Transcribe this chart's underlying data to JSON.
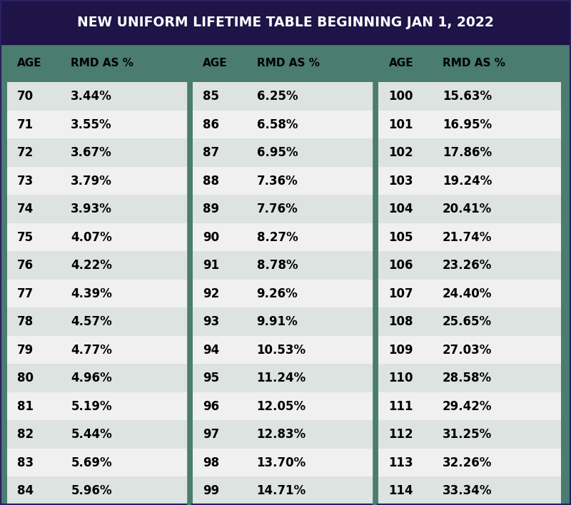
{
  "title": "NEW UNIFORM LIFETIME TABLE BEGINNING JAN 1, 2022",
  "title_bg": "#1e1447",
  "title_color": "#ffffff",
  "table_bg": "#4a7c6f",
  "row_even_bg": "#dde3e0",
  "row_odd_bg": "#f0f0f0",
  "header_color": "#000000",
  "col1_ages": [
    70,
    71,
    72,
    73,
    74,
    75,
    76,
    77,
    78,
    79,
    80,
    81,
    82,
    83,
    84
  ],
  "col1_pcts": [
    "3.44%",
    "3.55%",
    "3.67%",
    "3.79%",
    "3.93%",
    "4.07%",
    "4.22%",
    "4.39%",
    "4.57%",
    "4.77%",
    "4.96%",
    "5.19%",
    "5.44%",
    "5.69%",
    "5.96%"
  ],
  "col2_ages": [
    85,
    86,
    87,
    88,
    89,
    90,
    91,
    92,
    93,
    94,
    95,
    96,
    97,
    98,
    99
  ],
  "col2_pcts": [
    "6.25%",
    "6.58%",
    "6.95%",
    "7.36%",
    "7.76%",
    "8.27%",
    "8.78%",
    "9.26%",
    "9.91%",
    "10.53%",
    "11.24%",
    "12.05%",
    "12.83%",
    "13.70%",
    "14.71%"
  ],
  "col3_ages": [
    100,
    101,
    102,
    103,
    104,
    105,
    106,
    107,
    108,
    109,
    110,
    111,
    112,
    113,
    114
  ],
  "col3_pcts": [
    "15.63%",
    "16.95%",
    "17.86%",
    "19.24%",
    "20.41%",
    "21.74%",
    "23.26%",
    "24.40%",
    "25.65%",
    "27.03%",
    "28.58%",
    "29.42%",
    "31.25%",
    "32.26%",
    "33.34%"
  ]
}
